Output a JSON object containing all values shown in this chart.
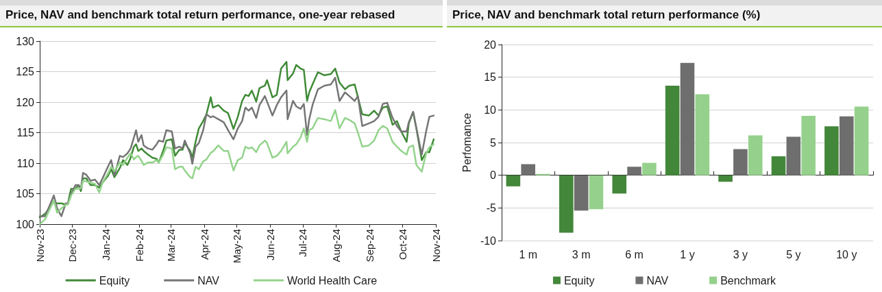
{
  "chart_data": [
    {
      "type": "line",
      "title": "Price, NAV and benchmark total return performance, one-year rebased",
      "x": [
        "2023-11-01",
        "2023-11-06",
        "2023-11-14",
        "2023-11-17",
        "2023-11-21",
        "2023-11-25",
        "2023-11-27",
        "2023-11-30",
        "2023-12-04",
        "2023-12-07",
        "2023-12-09",
        "2023-12-11",
        "2023-12-14",
        "2023-12-18",
        "2023-12-22",
        "2023-12-26",
        "2023-12-29",
        "2024-01-03",
        "2024-01-06",
        "2024-01-09",
        "2024-01-14",
        "2024-01-17",
        "2024-01-21",
        "2024-01-24",
        "2024-01-27",
        "2024-01-29",
        "2024-01-31",
        "2024-02-03",
        "2024-02-05",
        "2024-02-09",
        "2024-02-13",
        "2024-02-17",
        "2024-02-19",
        "2024-02-23",
        "2024-02-26",
        "2024-03-02",
        "2024-03-05",
        "2024-03-09",
        "2024-03-12",
        "2024-03-14",
        "2024-03-19",
        "2024-03-21",
        "2024-03-24",
        "2024-03-27",
        "2024-03-31",
        "2024-04-03",
        "2024-04-07",
        "2024-04-09",
        "2024-04-14",
        "2024-04-19",
        "2024-04-23",
        "2024-04-28",
        "2024-05-02",
        "2024-05-06",
        "2024-05-09",
        "2024-05-12",
        "2024-05-15",
        "2024-05-19",
        "2024-05-22",
        "2024-05-27",
        "2024-05-29",
        "2024-06-03",
        "2024-06-07",
        "2024-06-11",
        "2024-06-16",
        "2024-06-17",
        "2024-06-22",
        "2024-06-25",
        "2024-06-29",
        "2024-07-02",
        "2024-07-05",
        "2024-07-07",
        "2024-07-10",
        "2024-07-15",
        "2024-07-21",
        "2024-07-27",
        "2024-07-31",
        "2024-08-04",
        "2024-08-09",
        "2024-08-13",
        "2024-08-18",
        "2024-08-21",
        "2024-08-25",
        "2024-08-31",
        "2024-09-05",
        "2024-09-09",
        "2024-09-13",
        "2024-09-17",
        "2024-09-22",
        "2024-09-26",
        "2024-09-30",
        "2024-10-05",
        "2024-10-07",
        "2024-10-11",
        "2024-10-14",
        "2024-10-19",
        "2024-10-23",
        "2024-10-26",
        "2024-10-30"
      ],
      "series": [
        {
          "name": "Equity",
          "color": "#3f8a36",
          "values": [
            101.1,
            101.7,
            103.7,
            103.4,
            103.4,
            103.2,
            103.4,
            105.8,
            105.8,
            106.4,
            105.4,
            107.5,
            107.5,
            106.4,
            106.4,
            106,
            106.8,
            107.9,
            109,
            107.7,
            109.2,
            110.5,
            109.7,
            110.9,
            112.7,
            113.1,
            112,
            112.4,
            112,
            111.4,
            110.9,
            110.7,
            110.1,
            112,
            113.7,
            113.9,
            111.2,
            112.2,
            112.2,
            113.3,
            112,
            110.9,
            113.5,
            115.7,
            116.9,
            118,
            120.8,
            119.1,
            119.5,
            118.6,
            118.2,
            115.6,
            117.6,
            120.2,
            121.2,
            121,
            121.9,
            120.1,
            122.3,
            122.7,
            123.6,
            120.8,
            121.2,
            125.5,
            126.6,
            123.6,
            124.7,
            126.1,
            125.5,
            125.3,
            120.2,
            121.6,
            122.9,
            124.9,
            124.4,
            124.6,
            125.5,
            123.2,
            122.1,
            122.7,
            122.9,
            120.8,
            118,
            117.8,
            118.6,
            117.8,
            119.1,
            119.3,
            116.3,
            116.9,
            115.2,
            113.5,
            116.5,
            118.4,
            115.7,
            110.5,
            111.8,
            111.8,
            113.9
          ]
        },
        {
          "name": "NAV",
          "color": "#757575",
          "values": [
            101.3,
            101.3,
            104.7,
            102.6,
            101.3,
            103.4,
            103.4,
            104.9,
            106.4,
            106.4,
            105.8,
            108.4,
            108.1,
            107.1,
            107.3,
            106.4,
            107.5,
            109.4,
            110.5,
            108,
            111.2,
            111,
            111.6,
            112.4,
            114.2,
            115.4,
            113.5,
            114.6,
            112.9,
            112.4,
            112.2,
            113.1,
            113.7,
            113.5,
            115.4,
            115.2,
            112.4,
            112.7,
            112.4,
            113.7,
            111.6,
            109.9,
            112.7,
            113.3,
            115.4,
            118,
            117.5,
            117.7,
            117.2,
            116.7,
            115.4,
            113.9,
            115.7,
            116.9,
            119.1,
            118.6,
            119.1,
            117.4,
            119.5,
            121,
            120.1,
            117.8,
            119.5,
            120.8,
            121.9,
            117.2,
            120.2,
            119.3,
            118.9,
            119.7,
            114.6,
            117.2,
            119.5,
            122.1,
            122.7,
            122.9,
            124,
            120.2,
            121.6,
            121,
            120.2,
            121,
            116.1,
            116.5,
            116.9,
            117.6,
            119.7,
            119.9,
            117.4,
            116.1,
            115.2,
            115.2,
            116.7,
            118.4,
            115.7,
            111.4,
            115.2,
            117.6,
            117.8
          ]
        },
        {
          "name": "World Health Care",
          "color": "#93d38b",
          "values": [
            100,
            100.8,
            103.9,
            101.9,
            102.6,
            103.2,
            103.2,
            104.7,
            105.8,
            105.8,
            105.9,
            107.1,
            107,
            106.8,
            106.6,
            105.2,
            106.8,
            108.3,
            109.4,
            108.7,
            110.1,
            109.7,
            110.9,
            111.6,
            110.6,
            111,
            111.2,
            110.4,
            109.7,
            110.1,
            110.1,
            110.5,
            110.1,
            111.4,
            112.6,
            112.4,
            109,
            109.4,
            109.4,
            108.8,
            107.7,
            107.5,
            109.4,
            109,
            110.3,
            110.6,
            111.7,
            111.9,
            112.9,
            112,
            112,
            108.8,
            110.5,
            110.9,
            112.7,
            112.4,
            112.6,
            111.8,
            112.9,
            113.7,
            113.3,
            110.9,
            111.2,
            112,
            113.5,
            111.6,
            112.7,
            113.1,
            114.2,
            115.7,
            113.5,
            115.4,
            115.7,
            117.4,
            117.2,
            116.9,
            118.7,
            115.7,
            117.4,
            117.1,
            116.5,
            115,
            112.7,
            112.9,
            113.7,
            115.4,
            116.1,
            115.7,
            113.5,
            112.7,
            112,
            111.4,
            112.6,
            112.9,
            109.7,
            108.6,
            111.6,
            112.6,
            113.1
          ]
        }
      ],
      "xlim": [
        "2023-11-01",
        "2024-11-01"
      ],
      "xticks": [
        {
          "value": "2023-11-01",
          "label": "Nov-23"
        },
        {
          "value": "2023-12-01",
          "label": "Dec-23"
        },
        {
          "value": "2024-01-01",
          "label": "Jan-24"
        },
        {
          "value": "2024-02-01",
          "label": "Feb-24"
        },
        {
          "value": "2024-03-01",
          "label": "Mar-24"
        },
        {
          "value": "2024-04-01",
          "label": "Apr-24"
        },
        {
          "value": "2024-05-01",
          "label": "May-24"
        },
        {
          "value": "2024-06-01",
          "label": "Jun-24"
        },
        {
          "value": "2024-07-01",
          "label": "Jul-24"
        },
        {
          "value": "2024-08-01",
          "label": "Aug-24"
        },
        {
          "value": "2024-09-01",
          "label": "Sep-24"
        },
        {
          "value": "2024-10-01",
          "label": "Oct-24"
        },
        {
          "value": "2024-11-01",
          "label": "Nov-24"
        }
      ],
      "ylim": [
        100,
        130
      ],
      "yticks": [
        100,
        105,
        110,
        115,
        120,
        125,
        130
      ],
      "grid": "y",
      "legend": "bottom",
      "marker": "none",
      "line_style": "solid"
    },
    {
      "type": "bar",
      "title": "Price, NAV and benchmark total return performance (%)",
      "ylabel": "Perfomance",
      "categories": [
        "1 m",
        "3 m",
        "6 m",
        "1 y",
        "3 y",
        "5 y",
        "10 y"
      ],
      "series": [
        {
          "name": "Equity",
          "color": "#43873a",
          "values": [
            -1.7,
            -8.8,
            -2.8,
            13.7,
            -1.0,
            2.9,
            7.5
          ]
        },
        {
          "name": "NAV",
          "color": "#6e6e6e",
          "values": [
            1.7,
            -5.4,
            1.3,
            17.2,
            4.0,
            5.9,
            9.0
          ]
        },
        {
          "name": "Benchmark",
          "color": "#95d18c",
          "values": [
            0.2,
            -5.2,
            1.9,
            12.4,
            6.1,
            9.1,
            10.5
          ]
        }
      ],
      "ylim": [
        -10,
        20
      ],
      "yticks": [
        -10,
        -5,
        0,
        5,
        10,
        15,
        20
      ],
      "grid": "y",
      "legend": "bottom"
    }
  ]
}
